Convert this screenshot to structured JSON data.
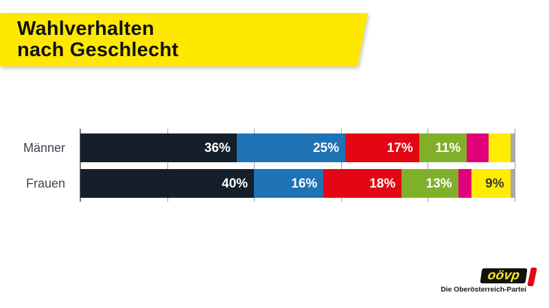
{
  "banner": {
    "line1": "Wahlverhalten",
    "line2": "nach Geschlecht",
    "bg_color": "#ffe800",
    "text_color": "#111111"
  },
  "chart_data": {
    "type": "bar",
    "variant": "horizontal-stacked",
    "unit": "%",
    "grid": "ticks-every-20-no-labels",
    "categories": [
      "Männer",
      "Frauen"
    ],
    "category_label_color": "#3d4351",
    "series": [
      {
        "name": "dark-navy",
        "color": "#141f2a",
        "label_color": "#ffffff",
        "values": [
          36,
          40
        ],
        "labels": [
          "36%",
          "40%"
        ]
      },
      {
        "name": "blue",
        "color": "#1e72b6",
        "label_color": "#ffffff",
        "values": [
          25,
          16
        ],
        "labels": [
          "25%",
          "16%"
        ]
      },
      {
        "name": "red",
        "color": "#e30613",
        "label_color": "#ffffff",
        "values": [
          17,
          18
        ],
        "labels": [
          "17%",
          "18%"
        ]
      },
      {
        "name": "green",
        "color": "#80b02a",
        "label_color": "#ffffff",
        "values": [
          11,
          13
        ],
        "labels": [
          "11%",
          "13%"
        ]
      },
      {
        "name": "magenta",
        "color": "#e2007a",
        "label_color": "#ffffff",
        "values": [
          5,
          3
        ],
        "labels": [
          "",
          ""
        ]
      },
      {
        "name": "yellow",
        "color": "#ffec00",
        "label_color": "#3a3a39",
        "values": [
          5,
          9
        ],
        "labels": [
          "",
          "9%"
        ]
      },
      {
        "name": "gray",
        "color": "#a9a9a9",
        "label_color": "#ffffff",
        "values": [
          1,
          1
        ],
        "labels": [
          "",
          ""
        ]
      }
    ],
    "axis": {
      "min": 0,
      "max": 100,
      "tick_step": 20,
      "tick_labels_visible": false
    }
  },
  "logo": {
    "wordmark": "oövp",
    "tagline": "Die Oberösterreich-Partei",
    "box_color": "#111111",
    "wordmark_color": "#fdea18",
    "accent_color": "#e30613"
  }
}
